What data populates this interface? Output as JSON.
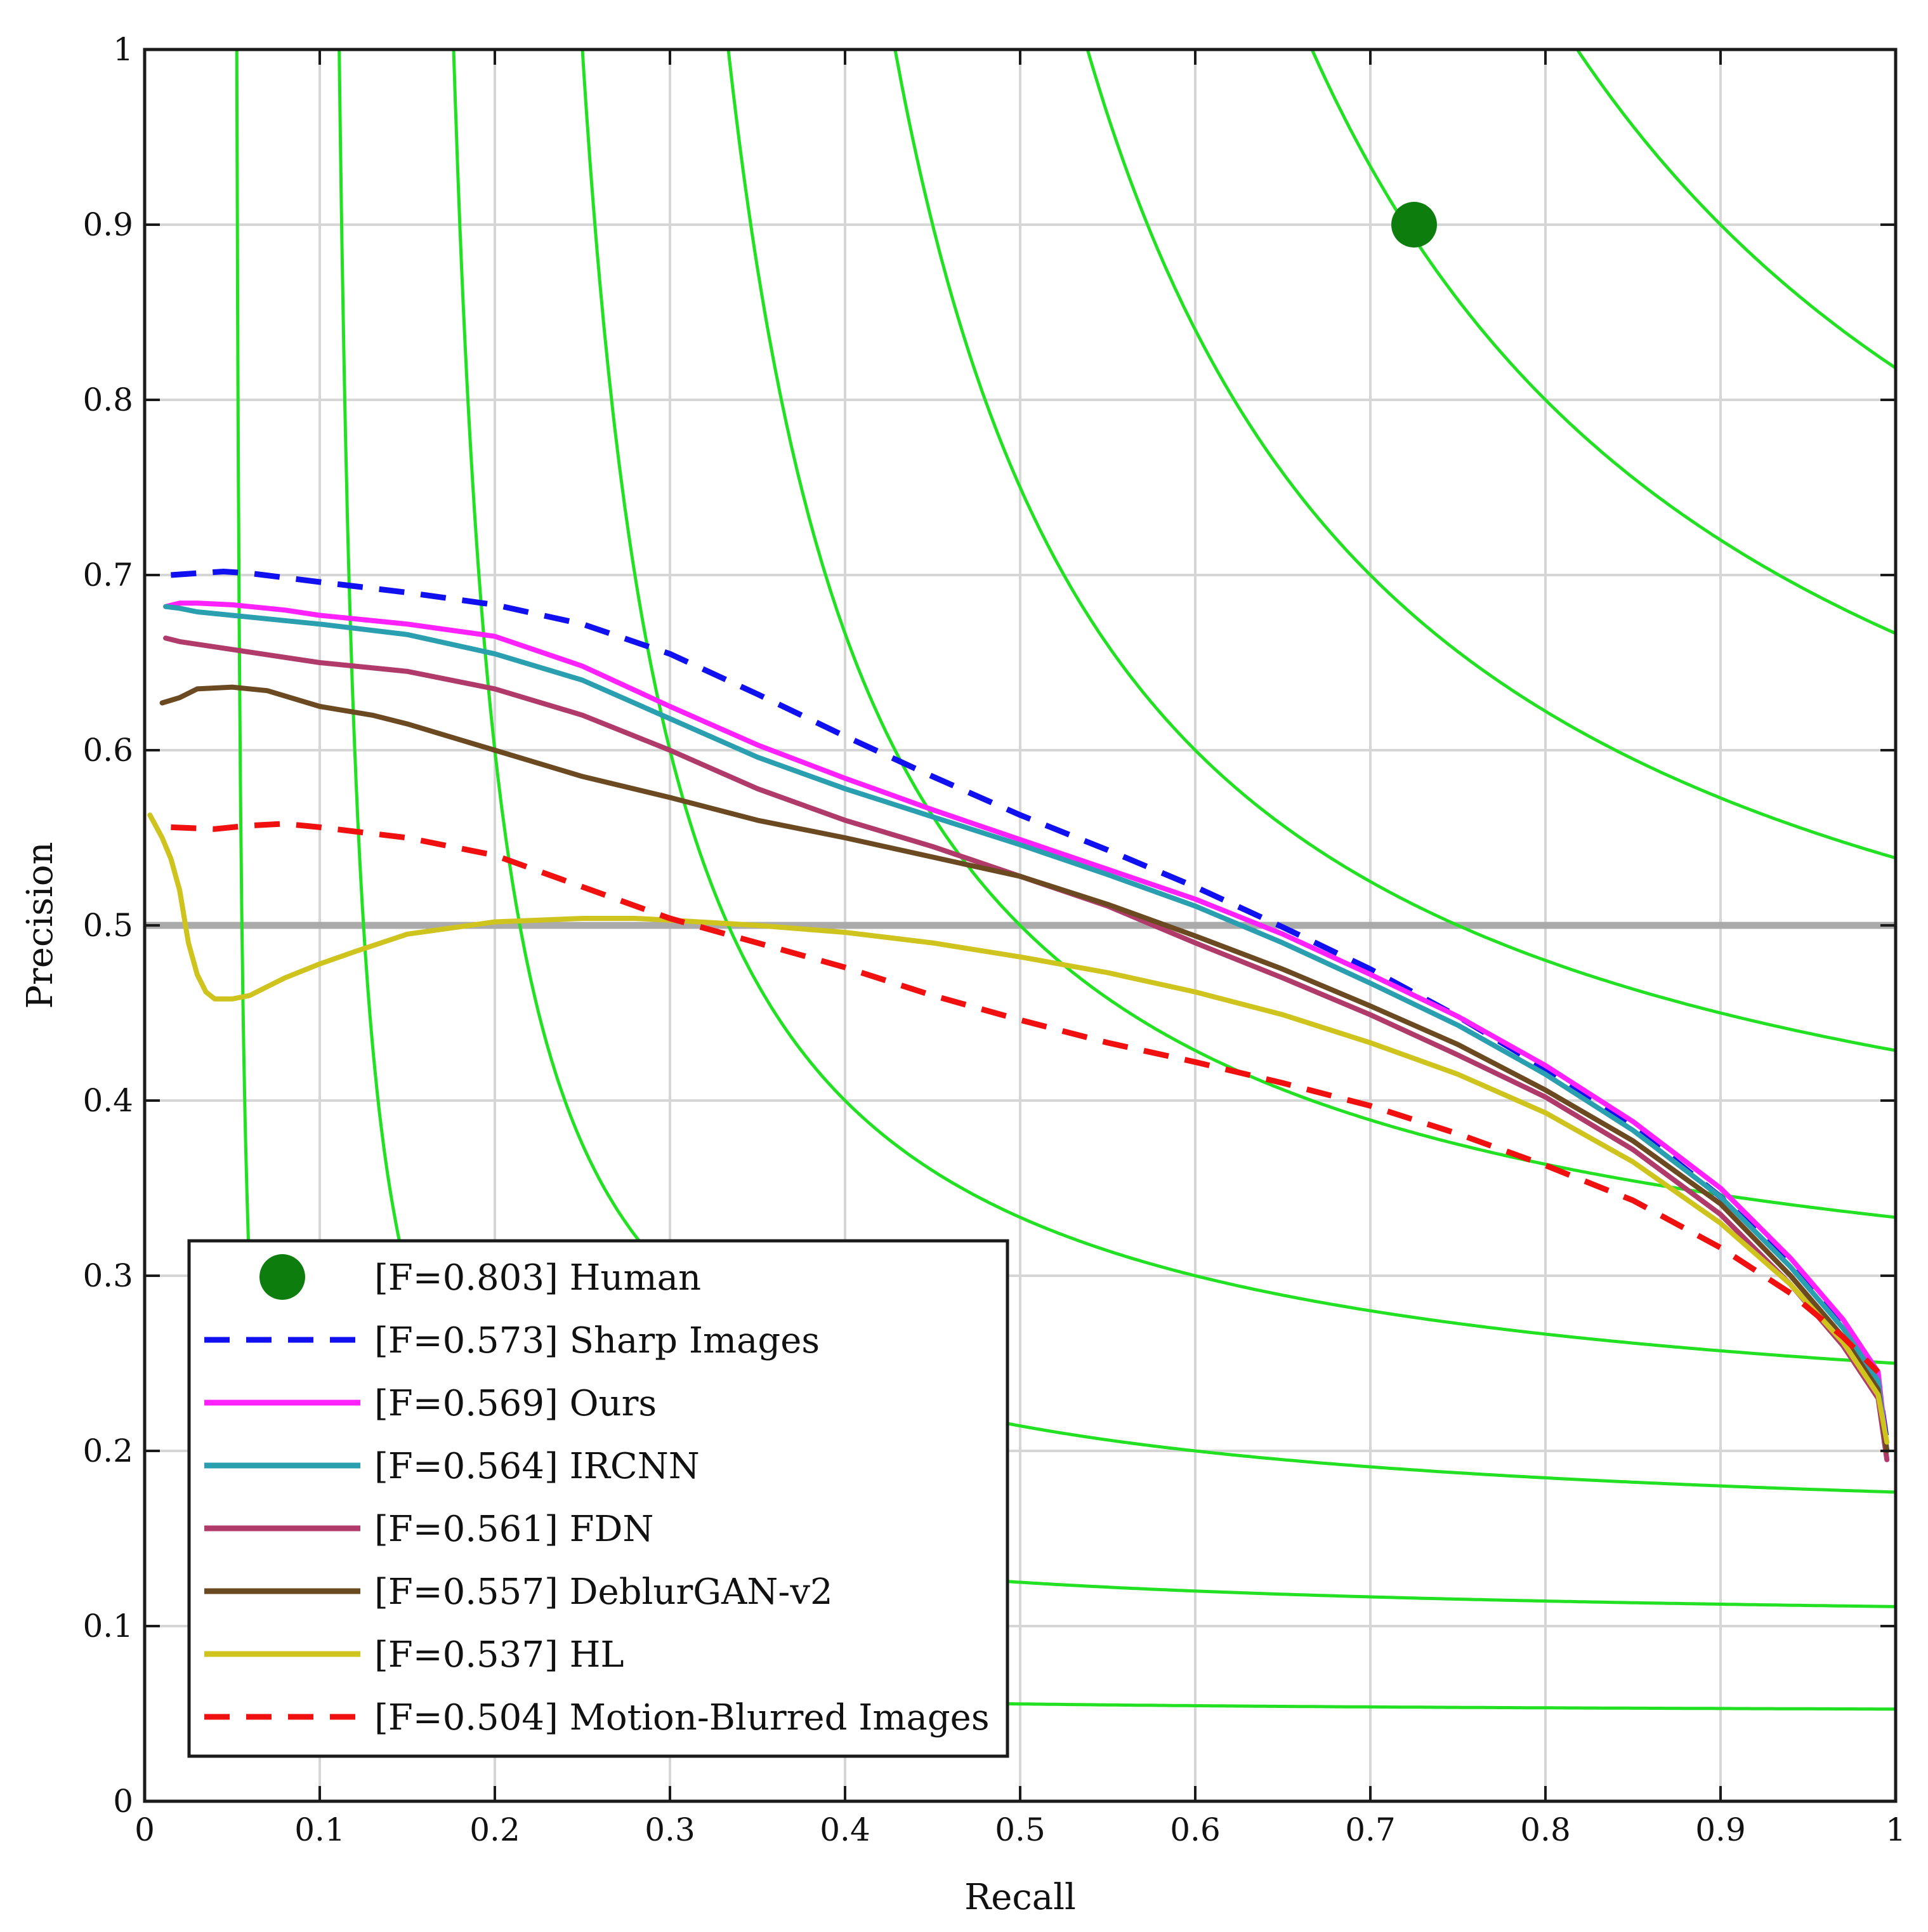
{
  "chart_data": {
    "type": "line",
    "title": "",
    "xlabel": "Recall",
    "ylabel": "Precision",
    "xlim": [
      0,
      1
    ],
    "ylim": [
      0,
      1
    ],
    "grid": true,
    "xticks": [
      "0",
      "0.1",
      "0.2",
      "0.3",
      "0.4",
      "0.5",
      "0.6",
      "0.7",
      "0.8",
      "0.9",
      "1"
    ],
    "yticks": [
      "0",
      "0.1",
      "0.2",
      "0.3",
      "0.4",
      "0.5",
      "0.6",
      "0.7",
      "0.8",
      "0.9",
      "1"
    ],
    "reference_line": {
      "y": 0.5,
      "color": "#aaaaaa"
    },
    "iso_f_contours": {
      "color": "#22e022",
      "f_values": [
        0.1,
        0.2,
        0.3,
        0.4,
        0.5,
        0.6,
        0.7,
        0.8,
        0.9
      ]
    },
    "legend_position": "bottom-left",
    "points": [
      {
        "name": "Human",
        "label": "[F=0.803] Human",
        "x": 0.725,
        "y": 0.9,
        "color": "#0d7d0d"
      }
    ],
    "series": [
      {
        "name": "Sharp Images",
        "label": "[F=0.573] Sharp Images",
        "color": "#1010f0",
        "dashed": true,
        "x": [
          0.015,
          0.03,
          0.045,
          0.06,
          0.1,
          0.15,
          0.2,
          0.25,
          0.3,
          0.35,
          0.4,
          0.45,
          0.5,
          0.55,
          0.6,
          0.65,
          0.7,
          0.75,
          0.8,
          0.85,
          0.9,
          0.94,
          0.97,
          0.99,
          0.995
        ],
        "y": [
          0.7,
          0.701,
          0.702,
          0.701,
          0.696,
          0.69,
          0.683,
          0.672,
          0.655,
          0.632,
          0.608,
          0.585,
          0.563,
          0.543,
          0.522,
          0.499,
          0.475,
          0.448,
          0.418,
          0.385,
          0.345,
          0.307,
          0.27,
          0.24,
          0.205
        ]
      },
      {
        "name": "Ours",
        "label": "[F=0.569] Ours",
        "color": "#ff22ff",
        "dashed": false,
        "x": [
          0.012,
          0.02,
          0.03,
          0.05,
          0.08,
          0.1,
          0.15,
          0.2,
          0.25,
          0.3,
          0.35,
          0.4,
          0.45,
          0.5,
          0.55,
          0.6,
          0.65,
          0.7,
          0.75,
          0.8,
          0.85,
          0.9,
          0.94,
          0.97,
          0.99,
          0.995
        ],
        "y": [
          0.682,
          0.684,
          0.684,
          0.683,
          0.68,
          0.677,
          0.672,
          0.665,
          0.648,
          0.625,
          0.603,
          0.584,
          0.566,
          0.549,
          0.532,
          0.515,
          0.495,
          0.472,
          0.448,
          0.42,
          0.388,
          0.35,
          0.31,
          0.275,
          0.245,
          0.2
        ]
      },
      {
        "name": "IRCNN",
        "label": "[F=0.564] IRCNN",
        "color": "#2a9fb0",
        "dashed": false,
        "x": [
          0.012,
          0.02,
          0.03,
          0.05,
          0.08,
          0.1,
          0.15,
          0.2,
          0.25,
          0.3,
          0.35,
          0.4,
          0.45,
          0.5,
          0.55,
          0.6,
          0.65,
          0.7,
          0.75,
          0.8,
          0.85,
          0.9,
          0.94,
          0.97,
          0.99,
          0.995
        ],
        "y": [
          0.682,
          0.681,
          0.679,
          0.677,
          0.674,
          0.672,
          0.666,
          0.655,
          0.64,
          0.618,
          0.596,
          0.578,
          0.562,
          0.546,
          0.529,
          0.511,
          0.49,
          0.467,
          0.443,
          0.415,
          0.383,
          0.345,
          0.305,
          0.27,
          0.24,
          0.2
        ]
      },
      {
        "name": "FDN",
        "label": "[F=0.561] FDN",
        "color": "#b03a6a",
        "dashed": false,
        "x": [
          0.012,
          0.02,
          0.04,
          0.06,
          0.1,
          0.15,
          0.2,
          0.25,
          0.3,
          0.35,
          0.4,
          0.45,
          0.5,
          0.55,
          0.6,
          0.65,
          0.7,
          0.75,
          0.8,
          0.85,
          0.9,
          0.94,
          0.97,
          0.99,
          0.995
        ],
        "y": [
          0.664,
          0.662,
          0.659,
          0.656,
          0.65,
          0.645,
          0.635,
          0.62,
          0.6,
          0.578,
          0.56,
          0.545,
          0.528,
          0.511,
          0.49,
          0.47,
          0.449,
          0.426,
          0.402,
          0.372,
          0.335,
          0.295,
          0.26,
          0.23,
          0.195
        ]
      },
      {
        "name": "DeblurGAN-v2",
        "label": "[F=0.557] DeblurGAN-v2",
        "color": "#6b4a22",
        "dashed": false,
        "x": [
          0.01,
          0.02,
          0.03,
          0.05,
          0.07,
          0.1,
          0.13,
          0.15,
          0.2,
          0.25,
          0.3,
          0.35,
          0.4,
          0.45,
          0.5,
          0.55,
          0.6,
          0.65,
          0.7,
          0.75,
          0.8,
          0.85,
          0.9,
          0.94,
          0.97,
          0.99,
          0.995
        ],
        "y": [
          0.627,
          0.63,
          0.635,
          0.636,
          0.634,
          0.625,
          0.62,
          0.615,
          0.6,
          0.585,
          0.573,
          0.56,
          0.55,
          0.539,
          0.528,
          0.512,
          0.494,
          0.475,
          0.454,
          0.432,
          0.406,
          0.377,
          0.341,
          0.3,
          0.265,
          0.235,
          0.2
        ]
      },
      {
        "name": "HL",
        "label": "[F=0.537] HL",
        "color": "#cfc41e",
        "dashed": false,
        "x": [
          0.003,
          0.01,
          0.015,
          0.02,
          0.025,
          0.03,
          0.035,
          0.04,
          0.05,
          0.06,
          0.07,
          0.08,
          0.1,
          0.12,
          0.15,
          0.2,
          0.25,
          0.28,
          0.3,
          0.35,
          0.4,
          0.45,
          0.5,
          0.55,
          0.6,
          0.65,
          0.7,
          0.75,
          0.8,
          0.85,
          0.9,
          0.94,
          0.97,
          0.99,
          0.995
        ],
        "y": [
          0.563,
          0.55,
          0.538,
          0.52,
          0.49,
          0.472,
          0.462,
          0.458,
          0.458,
          0.46,
          0.465,
          0.47,
          0.478,
          0.485,
          0.495,
          0.502,
          0.504,
          0.504,
          0.503,
          0.5,
          0.496,
          0.49,
          0.482,
          0.473,
          0.462,
          0.449,
          0.433,
          0.415,
          0.393,
          0.365,
          0.33,
          0.295,
          0.262,
          0.232,
          0.205
        ]
      },
      {
        "name": "Motion-Blurred Images",
        "label": "[F=0.504] Motion-Blurred Images",
        "color": "#f01010",
        "dashed": true,
        "x": [
          0.015,
          0.04,
          0.06,
          0.08,
          0.1,
          0.15,
          0.2,
          0.25,
          0.3,
          0.35,
          0.4,
          0.45,
          0.5,
          0.55,
          0.6,
          0.65,
          0.7,
          0.75,
          0.8,
          0.85,
          0.9,
          0.94,
          0.97,
          0.99
        ],
        "y": [
          0.556,
          0.555,
          0.557,
          0.558,
          0.556,
          0.55,
          0.54,
          0.522,
          0.504,
          0.49,
          0.476,
          0.46,
          0.446,
          0.433,
          0.422,
          0.41,
          0.397,
          0.381,
          0.363,
          0.343,
          0.316,
          0.29,
          0.265,
          0.245
        ]
      }
    ]
  }
}
